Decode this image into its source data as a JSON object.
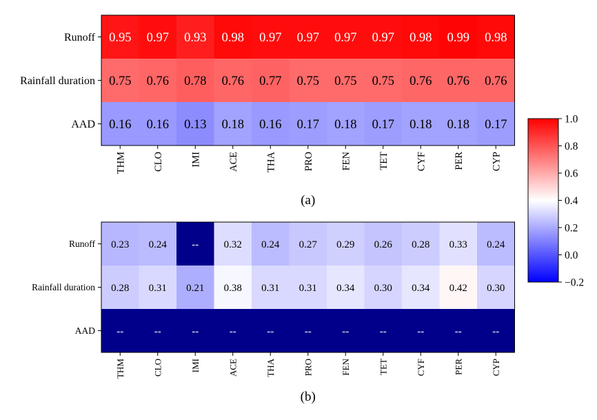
{
  "chart_data": [
    {
      "type": "heatmap",
      "panel_label": "(a)",
      "rows": [
        "Runoff",
        "Rainfall duration",
        "AAD"
      ],
      "columns": [
        "THM",
        "CLO",
        "IMI",
        "ACE",
        "THA",
        "PRO",
        "FEN",
        "TET",
        "CYF",
        "PER",
        "CYP"
      ],
      "values": [
        [
          0.95,
          0.97,
          0.93,
          0.98,
          0.97,
          0.97,
          0.97,
          0.97,
          0.98,
          0.99,
          0.98
        ],
        [
          0.75,
          0.76,
          0.78,
          0.76,
          0.77,
          0.75,
          0.75,
          0.75,
          0.76,
          0.76,
          0.76
        ],
        [
          0.16,
          0.16,
          0.13,
          0.18,
          0.16,
          0.17,
          0.18,
          0.17,
          0.18,
          0.18,
          0.17
        ]
      ],
      "labels": [
        [
          "0.95",
          "0.97",
          "0.93",
          "0.98",
          "0.97",
          "0.97",
          "0.97",
          "0.97",
          "0.98",
          "0.99",
          "0.98"
        ],
        [
          "0.75",
          "0.76",
          "0.78",
          "0.76",
          "0.77",
          "0.75",
          "0.75",
          "0.75",
          "0.76",
          "0.76",
          "0.76"
        ],
        [
          "0.16",
          "0.16",
          "0.13",
          "0.18",
          "0.16",
          "0.17",
          "0.18",
          "0.17",
          "0.18",
          "0.18",
          "0.17"
        ]
      ]
    },
    {
      "type": "heatmap",
      "panel_label": "(b)",
      "rows": [
        "Runoff",
        "Rainfall duration",
        "AAD"
      ],
      "columns": [
        "THM",
        "CLO",
        "IMI",
        "ACE",
        "THA",
        "PRO",
        "FEN",
        "TET",
        "CYF",
        "PER",
        "CYP"
      ],
      "values": [
        [
          0.23,
          0.24,
          null,
          0.32,
          0.24,
          0.27,
          0.29,
          0.26,
          0.28,
          0.33,
          0.24
        ],
        [
          0.28,
          0.31,
          0.21,
          0.38,
          0.31,
          0.31,
          0.34,
          0.3,
          0.34,
          0.42,
          0.3
        ],
        [
          null,
          null,
          null,
          null,
          null,
          null,
          null,
          null,
          null,
          null,
          null
        ]
      ],
      "labels": [
        [
          "0.23",
          "0.24",
          "--",
          "0.32",
          "0.24",
          "0.27",
          "0.29",
          "0.26",
          "0.28",
          "0.33",
          "0.24"
        ],
        [
          "0.28",
          "0.31",
          "0.21",
          "0.38",
          "0.31",
          "0.31",
          "0.34",
          "0.30",
          "0.34",
          "0.42",
          "0.30"
        ],
        [
          "--",
          "--",
          "--",
          "--",
          "--",
          "--",
          "--",
          "--",
          "--",
          "--",
          "--"
        ]
      ],
      "missing_color": "#00008b"
    }
  ],
  "colorbar": {
    "vmin": -0.2,
    "vmax": 1.0,
    "ticks": [
      1.0,
      0.8,
      0.6,
      0.4,
      0.2,
      0.0,
      -0.2
    ],
    "tick_labels": [
      "1.0",
      "0.8",
      "0.6",
      "0.4",
      "0.2",
      "0.0",
      "−0.2"
    ],
    "colors": [
      "#0000ff",
      "#ffffff",
      "#ff0000"
    ]
  }
}
